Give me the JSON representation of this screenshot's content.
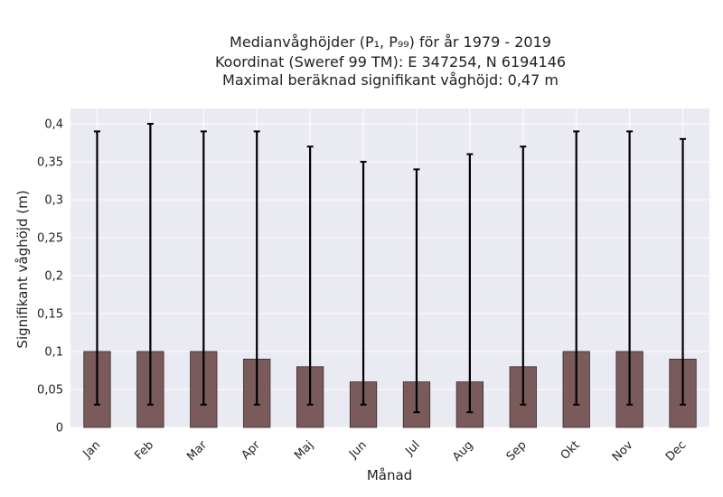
{
  "chart_data": {
    "type": "bar",
    "title_lines": [
      "Medianvåghöjder (P₁, P₉₉) för år 1979 - 2019",
      "Koordinat (Sweref 99 TM): E 347254, N 6194146",
      "Maximal beräknad signifikant våghöjd: 0,47 m"
    ],
    "xlabel": "Månad",
    "ylabel": "Signifikant våghöjd (m)",
    "categories": [
      "Jan",
      "Feb",
      "Mar",
      "Apr",
      "Maj",
      "Jun",
      "Jul",
      "Aug",
      "Sep",
      "Okt",
      "Nov",
      "Dec"
    ],
    "values": [
      0.1,
      0.1,
      0.1,
      0.09,
      0.08,
      0.06,
      0.06,
      0.06,
      0.08,
      0.1,
      0.1,
      0.09
    ],
    "p1": [
      0.03,
      0.03,
      0.03,
      0.03,
      0.03,
      0.03,
      0.02,
      0.02,
      0.03,
      0.03,
      0.03,
      0.03
    ],
    "p99": [
      0.39,
      0.4,
      0.39,
      0.39,
      0.37,
      0.35,
      0.34,
      0.36,
      0.37,
      0.39,
      0.39,
      0.38
    ],
    "ylim": [
      0,
      0.4
    ],
    "yticks": [
      "0",
      "0,05",
      "0,1",
      "0,15",
      "0,2",
      "0,25",
      "0,3",
      "0,35",
      "0,4"
    ],
    "grid": true,
    "legend": false,
    "colors": {
      "bar": "#7a5a5a",
      "bar_edge": "#3a2a2a",
      "errorbar": "#000000",
      "plot_bg": "#eaeaf2",
      "grid": "#ffffff"
    }
  }
}
